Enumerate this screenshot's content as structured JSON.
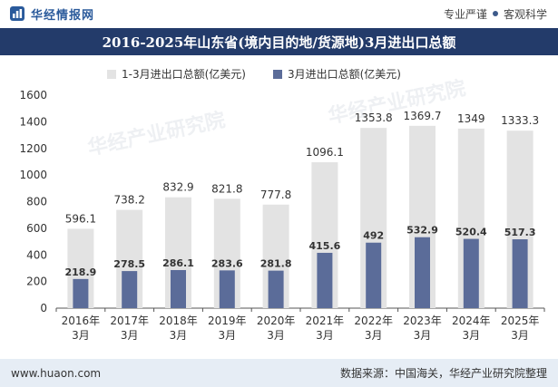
{
  "header": {
    "brand": "华经情报网",
    "tagline_left": "专业严谨",
    "tagline_right": "客观科学"
  },
  "title": "2016-2025年山东省(境内目的地/货源地)3月进出口总额",
  "footer": {
    "url": "www.huaon.com",
    "source": "数据来源：中国海关，华经产业研究院整理"
  },
  "colors": {
    "title_bg": "#233b6a",
    "series1": "#e3e3e3",
    "series2": "#5b6c99",
    "footer_bg": "#e6edf5"
  },
  "chart_data": {
    "type": "bar",
    "categories": [
      "2016年\n3月",
      "2017年\n3月",
      "2018年\n3月",
      "2019年\n3月",
      "2020年\n3月",
      "2021年\n3月",
      "2022年\n3月",
      "2023年\n3月",
      "2024年\n3月",
      "2025年\n3月"
    ],
    "series": [
      {
        "name": "1-3月进出口总额(亿美元)",
        "values": [
          596.1,
          738.2,
          832.9,
          821.8,
          777.8,
          1096.1,
          1353.8,
          1369.7,
          1349,
          1333.3
        ]
      },
      {
        "name": "3月进出口总额(亿美元)",
        "values": [
          218.9,
          278.5,
          286.1,
          283.6,
          281.8,
          415.6,
          492,
          532.9,
          520.4,
          517.3
        ]
      }
    ],
    "ylim": [
      0,
      1600
    ],
    "yticks": [
      0,
      200,
      400,
      600,
      800,
      1000,
      1200,
      1400,
      1600
    ],
    "legend": "top-center",
    "grid": false
  }
}
